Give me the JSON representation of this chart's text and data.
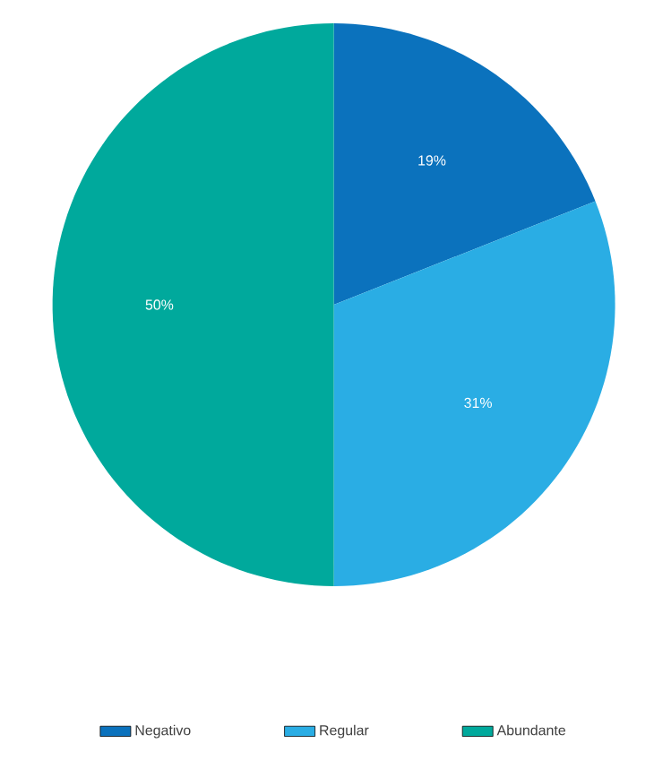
{
  "chart_data": {
    "type": "pie",
    "categories": [
      "Negativo",
      "Regular",
      "Abundante"
    ],
    "values": [
      19,
      31,
      50
    ],
    "value_labels": [
      "19%",
      "31%",
      "50%"
    ],
    "colors": [
      "#0b72bd",
      "#2aade4",
      "#00a99c"
    ],
    "legend": "bottom"
  }
}
